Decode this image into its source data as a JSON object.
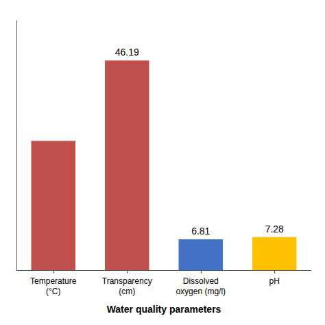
{
  "chart_data": {
    "type": "bar",
    "categories": [
      "Temperature\n(°C)",
      "Transparency\n(cm)",
      "Dissolved\noxygen (mg/l)",
      "pH"
    ],
    "values": [
      28.5,
      46.19,
      6.81,
      7.28
    ],
    "value_labels": [
      null,
      "46.19",
      "6.81",
      "7.28"
    ],
    "colors": [
      "#c0504d",
      "#c0504d",
      "#4472c4",
      "#ffc000"
    ],
    "xlabel": "Water quality parameters",
    "ylim": [
      0,
      55
    ],
    "grid": false,
    "tick_labels": "x"
  }
}
